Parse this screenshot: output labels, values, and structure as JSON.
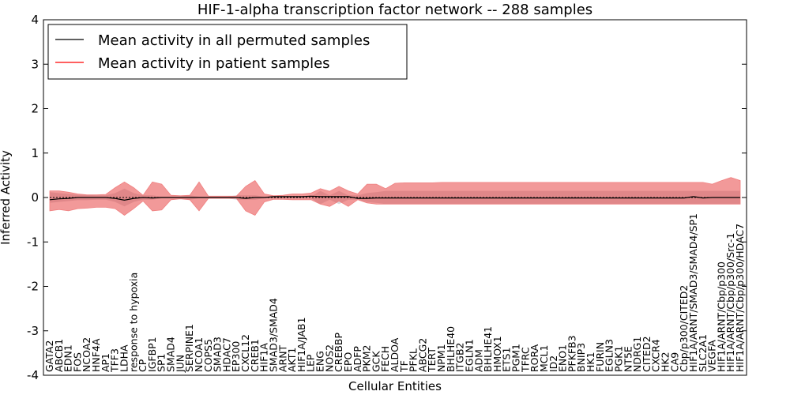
{
  "chart_data": {
    "type": "line",
    "title": "HIF-1-alpha transcription factor network -- 288 samples",
    "xlabel": "Cellular Entities",
    "ylabel": "Inferred Activity",
    "ylim": [
      -4,
      4
    ],
    "yticks": [
      -4,
      -3,
      -2,
      -1,
      0,
      1,
      2,
      3,
      4
    ],
    "grid": false,
    "legend_position": "top-left",
    "categories": [
      "GATA2",
      "ABCB1",
      "EDN1",
      "FOS",
      "NCOA2",
      "HNF4A",
      "AP1",
      "TFF3",
      "LDHA",
      "response to hypoxia",
      "CP",
      "IGFBP1",
      "SP1",
      "SMAD4",
      "JUN",
      "SERPINE1",
      "NCOA1",
      "COPS5",
      "SMAD3",
      "HDAC7",
      "EP300",
      "CXCL12",
      "CREB1",
      "HIF1A",
      "SMAD3/SMAD4",
      "ARNT",
      "AKT1",
      "HIF1A/JAB1",
      "LEP",
      "ENG",
      "NOS2",
      "CREBBP",
      "EPO",
      "ADFP",
      "PKM2",
      "GCK",
      "FECH",
      "ALDOA",
      "TF",
      "PFKL",
      "ABCG2",
      "TERT",
      "NPM1",
      "BHLHE40",
      "ITGB2",
      "EGLN1",
      "ADM",
      "BHLHE41",
      "HMOX1",
      "ETS1",
      "PGM1",
      "TFRC",
      "RORA",
      "MCL1",
      "ID2",
      "ENO1",
      "PFKFB3",
      "BNIP3",
      "HK1",
      "FURIN",
      "EGLN3",
      "PGK1",
      "NT5E",
      "NDRG1",
      "CITED2",
      "CXCR4",
      "HK2",
      "CA9",
      "Cbp/p300/CITED2",
      "HIF1A/ARNT/SMAD3/SMAD4/SP1",
      "SLC2A1",
      "VEGFA",
      "HIF1A/ARNT/Cbp/p300",
      "HIF1A/ARNT/Cbp/p300/Src-1",
      "HIF1A/ARNT/Cbp/p300/HDAC7"
    ],
    "series": [
      {
        "name": "Mean activity in all permuted samples",
        "color": "#000000",
        "mean": [
          0.0,
          0.0,
          0.0,
          0.0,
          0.0,
          0.0,
          0.0,
          0.0,
          0.0,
          0.0,
          0.0,
          0.0,
          0.0,
          0.0,
          0.0,
          0.0,
          0.0,
          0.0,
          0.0,
          0.0,
          0.0,
          0.0,
          0.0,
          0.0,
          0.0,
          0.0,
          0.0,
          0.0,
          0.0,
          0.0,
          0.0,
          0.0,
          0.0,
          0.0,
          0.0,
          0.0,
          0.0,
          0.0,
          0.0,
          0.0,
          0.0,
          0.0,
          0.0,
          0.0,
          0.0,
          0.0,
          0.0,
          0.0,
          0.0,
          0.0,
          0.0,
          0.0,
          0.0,
          0.0,
          0.0,
          0.0,
          0.0,
          0.0,
          0.0,
          0.0,
          0.0,
          0.0,
          0.0,
          0.0,
          0.0,
          0.0,
          0.0,
          0.0,
          0.0,
          0.0,
          0.0,
          0.0,
          0.0,
          0.0,
          0.0
        ],
        "lower": [
          -0.12,
          -0.1,
          -0.08,
          -0.06,
          -0.06,
          -0.05,
          -0.05,
          -0.1,
          -0.2,
          -0.1,
          -0.05,
          -0.05,
          -0.02,
          -0.02,
          -0.02,
          -0.05,
          -0.02,
          -0.02,
          -0.02,
          -0.02,
          -0.05,
          -0.05,
          -0.05,
          -0.02,
          -0.02,
          -0.02,
          -0.02,
          -0.02,
          -0.02,
          -0.15,
          -0.05,
          -0.15,
          -0.05,
          -0.05,
          -0.1,
          -0.12,
          -0.15,
          -0.15,
          -0.15,
          -0.15,
          -0.15,
          -0.15,
          -0.15,
          -0.15,
          -0.15,
          -0.15,
          -0.15,
          -0.15,
          -0.15,
          -0.15,
          -0.15,
          -0.15,
          -0.15,
          -0.15,
          -0.15,
          -0.15,
          -0.15,
          -0.15,
          -0.15,
          -0.15,
          -0.15,
          -0.15,
          -0.15,
          -0.15,
          -0.15,
          -0.15,
          -0.15,
          -0.15,
          -0.15,
          -0.15,
          -0.15,
          -0.15,
          -0.15,
          -0.15,
          -0.15
        ],
        "upper": [
          0.12,
          0.1,
          0.08,
          0.06,
          0.06,
          0.05,
          0.05,
          0.1,
          0.2,
          0.1,
          0.05,
          0.05,
          0.02,
          0.02,
          0.02,
          0.05,
          0.02,
          0.02,
          0.02,
          0.02,
          0.05,
          0.05,
          0.05,
          0.02,
          0.02,
          0.02,
          0.02,
          0.02,
          0.02,
          0.15,
          0.05,
          0.15,
          0.05,
          0.05,
          0.1,
          0.12,
          0.15,
          0.15,
          0.15,
          0.15,
          0.15,
          0.15,
          0.15,
          0.15,
          0.15,
          0.15,
          0.15,
          0.15,
          0.15,
          0.15,
          0.15,
          0.15,
          0.15,
          0.15,
          0.15,
          0.15,
          0.15,
          0.15,
          0.15,
          0.15,
          0.15,
          0.15,
          0.15,
          0.15,
          0.15,
          0.15,
          0.15,
          0.15,
          0.15,
          0.15,
          0.15,
          0.15,
          0.15,
          0.15,
          0.15
        ]
      },
      {
        "name": "Mean activity in patient samples",
        "color": "#ff0000",
        "mean": [
          -0.05,
          -0.03,
          -0.02,
          0.0,
          0.0,
          0.0,
          0.0,
          -0.02,
          -0.06,
          -0.02,
          0.0,
          -0.01,
          0.0,
          0.0,
          0.0,
          0.0,
          0.0,
          0.0,
          0.0,
          0.0,
          0.0,
          -0.02,
          0.0,
          0.0,
          0.02,
          0.02,
          0.02,
          0.02,
          0.03,
          0.02,
          0.02,
          0.02,
          0.02,
          -0.02,
          -0.02,
          -0.01,
          -0.01,
          -0.01,
          -0.01,
          -0.01,
          -0.01,
          -0.01,
          -0.01,
          -0.01,
          -0.01,
          -0.01,
          -0.01,
          -0.01,
          -0.01,
          -0.01,
          -0.01,
          -0.01,
          -0.01,
          -0.01,
          -0.01,
          -0.01,
          -0.01,
          -0.01,
          -0.01,
          -0.01,
          -0.01,
          -0.01,
          -0.01,
          -0.01,
          -0.01,
          -0.01,
          -0.01,
          -0.01,
          -0.01,
          0.02,
          -0.01,
          0.0,
          0.0,
          0.0,
          0.0
        ],
        "lower": [
          -0.3,
          -0.27,
          -0.3,
          -0.25,
          -0.24,
          -0.22,
          -0.22,
          -0.25,
          -0.4,
          -0.25,
          -0.08,
          -0.3,
          -0.28,
          -0.05,
          -0.03,
          -0.05,
          -0.3,
          -0.02,
          -0.02,
          -0.02,
          -0.02,
          -0.3,
          -0.4,
          -0.1,
          -0.04,
          -0.04,
          -0.05,
          -0.05,
          -0.05,
          -0.15,
          -0.2,
          -0.08,
          -0.2,
          -0.05,
          -0.12,
          -0.15,
          -0.15,
          -0.15,
          -0.15,
          -0.15,
          -0.15,
          -0.15,
          -0.15,
          -0.15,
          -0.15,
          -0.15,
          -0.15,
          -0.15,
          -0.15,
          -0.15,
          -0.15,
          -0.15,
          -0.15,
          -0.15,
          -0.15,
          -0.15,
          -0.15,
          -0.15,
          -0.15,
          -0.15,
          -0.15,
          -0.15,
          -0.15,
          -0.15,
          -0.15,
          -0.15,
          -0.15,
          -0.15,
          -0.15,
          -0.15,
          -0.15,
          -0.15,
          -0.15,
          -0.15,
          -0.15
        ],
        "upper": [
          0.15,
          0.15,
          0.12,
          0.08,
          0.06,
          0.06,
          0.07,
          0.22,
          0.35,
          0.22,
          0.05,
          0.35,
          0.3,
          0.05,
          0.04,
          0.05,
          0.35,
          0.03,
          0.03,
          0.03,
          0.03,
          0.25,
          0.38,
          0.08,
          0.04,
          0.05,
          0.08,
          0.08,
          0.1,
          0.2,
          0.14,
          0.25,
          0.15,
          0.08,
          0.3,
          0.3,
          0.2,
          0.32,
          0.33,
          0.33,
          0.33,
          0.33,
          0.34,
          0.34,
          0.34,
          0.34,
          0.34,
          0.34,
          0.34,
          0.34,
          0.34,
          0.34,
          0.34,
          0.34,
          0.34,
          0.34,
          0.34,
          0.34,
          0.34,
          0.34,
          0.34,
          0.34,
          0.34,
          0.34,
          0.34,
          0.34,
          0.34,
          0.34,
          0.34,
          0.34,
          0.34,
          0.3,
          0.38,
          0.45,
          0.38
        ]
      }
    ]
  }
}
